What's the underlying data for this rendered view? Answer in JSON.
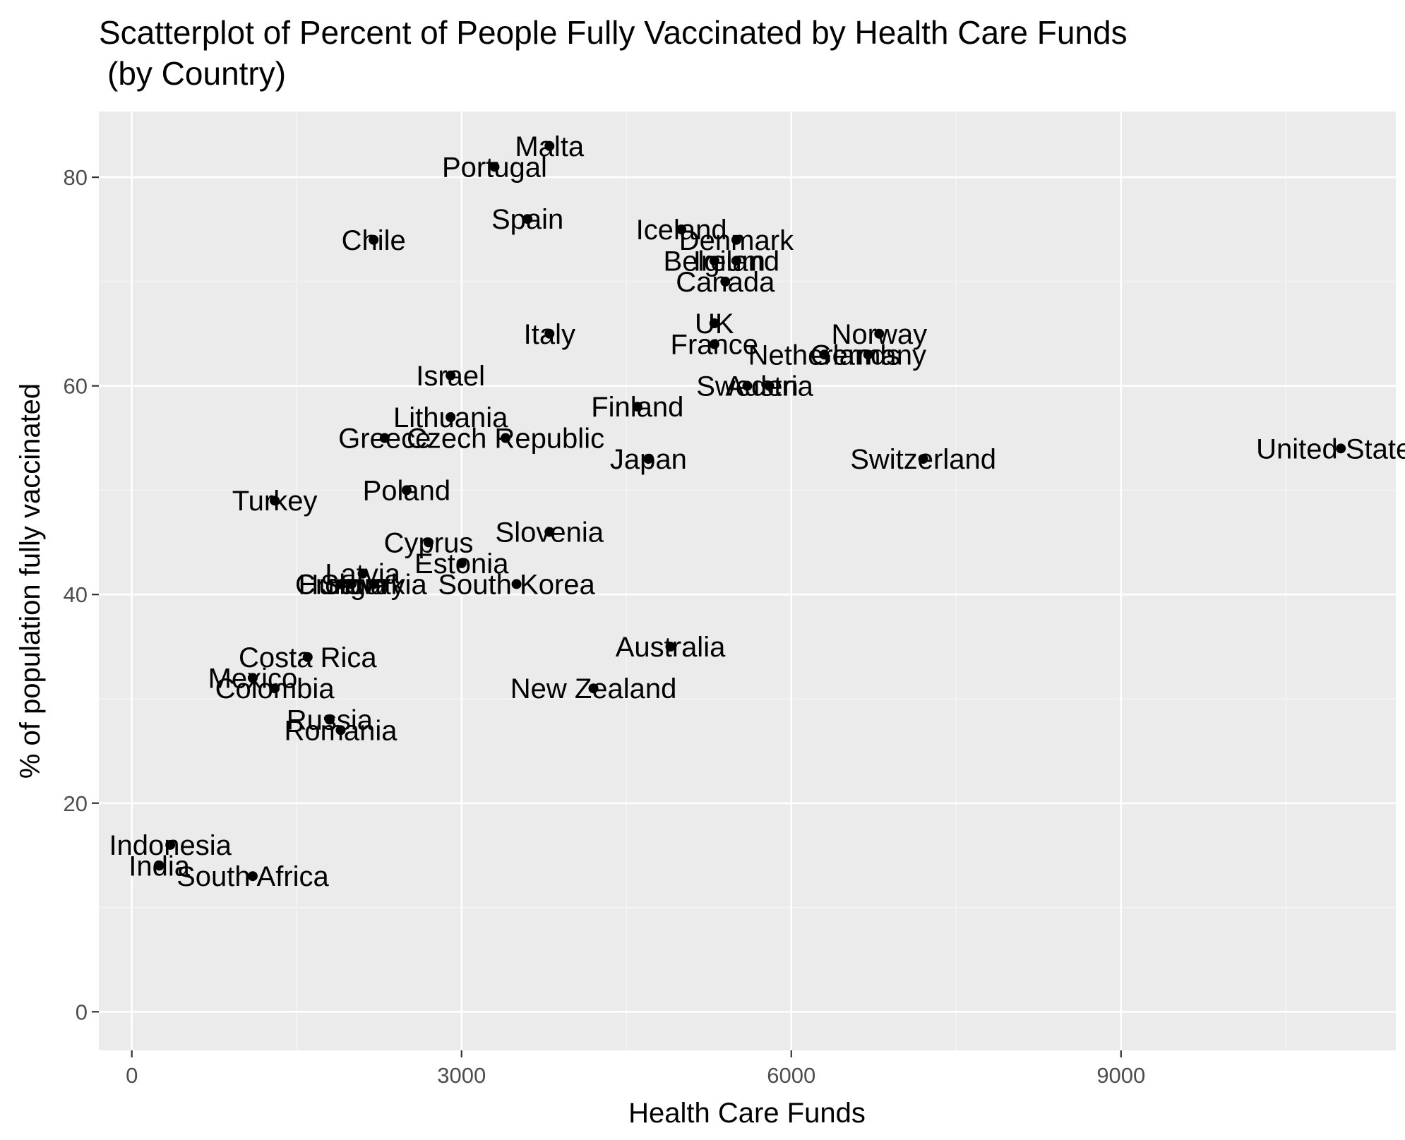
{
  "chart_data": {
    "type": "scatter",
    "title": "Scatterplot of Percent of People Fully Vaccinated by Health Care Funds",
    "subtitle": "(by Country)",
    "xlabel": "Health Care Funds",
    "ylabel": "% of population fully vaccinated",
    "xlim": [
      -300,
      11500
    ],
    "ylim": [
      -3.7,
      86.3
    ],
    "x_ticks": [
      0,
      3000,
      6000,
      9000
    ],
    "y_ticks": [
      0,
      20,
      40,
      60,
      80
    ],
    "x_tick_labels": [
      "0",
      "3000",
      "6000",
      "9000"
    ],
    "y_tick_labels": [
      "0",
      "20",
      "40",
      "60",
      "80"
    ],
    "grid": true,
    "legend": "none",
    "colors": {
      "panel_background": "#ebebeb",
      "grid_major": "#ffffff",
      "grid_minor": "#f5f5f5",
      "point": "#000000",
      "tick": "#333333"
    },
    "points": [
      {
        "label": "Malta",
        "x": 3800,
        "y": 83
      },
      {
        "label": "Portugal",
        "x": 3300,
        "y": 81
      },
      {
        "label": "Spain",
        "x": 3600,
        "y": 76
      },
      {
        "label": "Chile",
        "x": 2200,
        "y": 74
      },
      {
        "label": "Iceland",
        "x": 5000,
        "y": 75
      },
      {
        "label": "Denmark",
        "x": 5500,
        "y": 74
      },
      {
        "label": "Belgium",
        "x": 5300,
        "y": 72
      },
      {
        "label": "Ireland",
        "x": 5500,
        "y": 72
      },
      {
        "label": "Canada",
        "x": 5400,
        "y": 70
      },
      {
        "label": "UK",
        "x": 5300,
        "y": 66
      },
      {
        "label": "Italy",
        "x": 3800,
        "y": 65
      },
      {
        "label": "France",
        "x": 5300,
        "y": 64
      },
      {
        "label": "Norway",
        "x": 6800,
        "y": 65
      },
      {
        "label": "Netherlands",
        "x": 6300,
        "y": 63
      },
      {
        "label": "Germany",
        "x": 6700,
        "y": 63
      },
      {
        "label": "Sweden",
        "x": 5600,
        "y": 60
      },
      {
        "label": "Austria",
        "x": 5800,
        "y": 60
      },
      {
        "label": "Israel",
        "x": 2900,
        "y": 61
      },
      {
        "label": "Finland",
        "x": 4600,
        "y": 58
      },
      {
        "label": "Lithuania",
        "x": 2900,
        "y": 57
      },
      {
        "label": "Greece",
        "x": 2300,
        "y": 55
      },
      {
        "label": "Czech Republic",
        "x": 3400,
        "y": 55
      },
      {
        "label": "Japan",
        "x": 4700,
        "y": 53
      },
      {
        "label": "Switzerland",
        "x": 7200,
        "y": 53
      },
      {
        "label": "United States",
        "x": 11000,
        "y": 54
      },
      {
        "label": "Poland",
        "x": 2500,
        "y": 50
      },
      {
        "label": "Turkey",
        "x": 1300,
        "y": 49
      },
      {
        "label": "Slovenia",
        "x": 3800,
        "y": 46
      },
      {
        "label": "Cyprus",
        "x": 2700,
        "y": 45
      },
      {
        "label": "Estonia",
        "x": 3000,
        "y": 43
      },
      {
        "label": "Latvia",
        "x": 2100,
        "y": 42
      },
      {
        "label": "Croatia",
        "x": 1900,
        "y": 41
      },
      {
        "label": "Hungary",
        "x": 2000,
        "y": 41
      },
      {
        "label": "Slovakia",
        "x": 2200,
        "y": 41
      },
      {
        "label": "South Korea",
        "x": 3500,
        "y": 41
      },
      {
        "label": "Australia",
        "x": 4900,
        "y": 35
      },
      {
        "label": "Costa Rica",
        "x": 1600,
        "y": 34
      },
      {
        "label": "Mexico",
        "x": 1100,
        "y": 32
      },
      {
        "label": "Colombia",
        "x": 1300,
        "y": 31
      },
      {
        "label": "New Zealand",
        "x": 4200,
        "y": 31
      },
      {
        "label": "Russia",
        "x": 1800,
        "y": 28
      },
      {
        "label": "Romania",
        "x": 1900,
        "y": 27
      },
      {
        "label": "Indonesia",
        "x": 350,
        "y": 16
      },
      {
        "label": "India",
        "x": 250,
        "y": 14
      },
      {
        "label": "South Africa",
        "x": 1100,
        "y": 13
      }
    ]
  }
}
